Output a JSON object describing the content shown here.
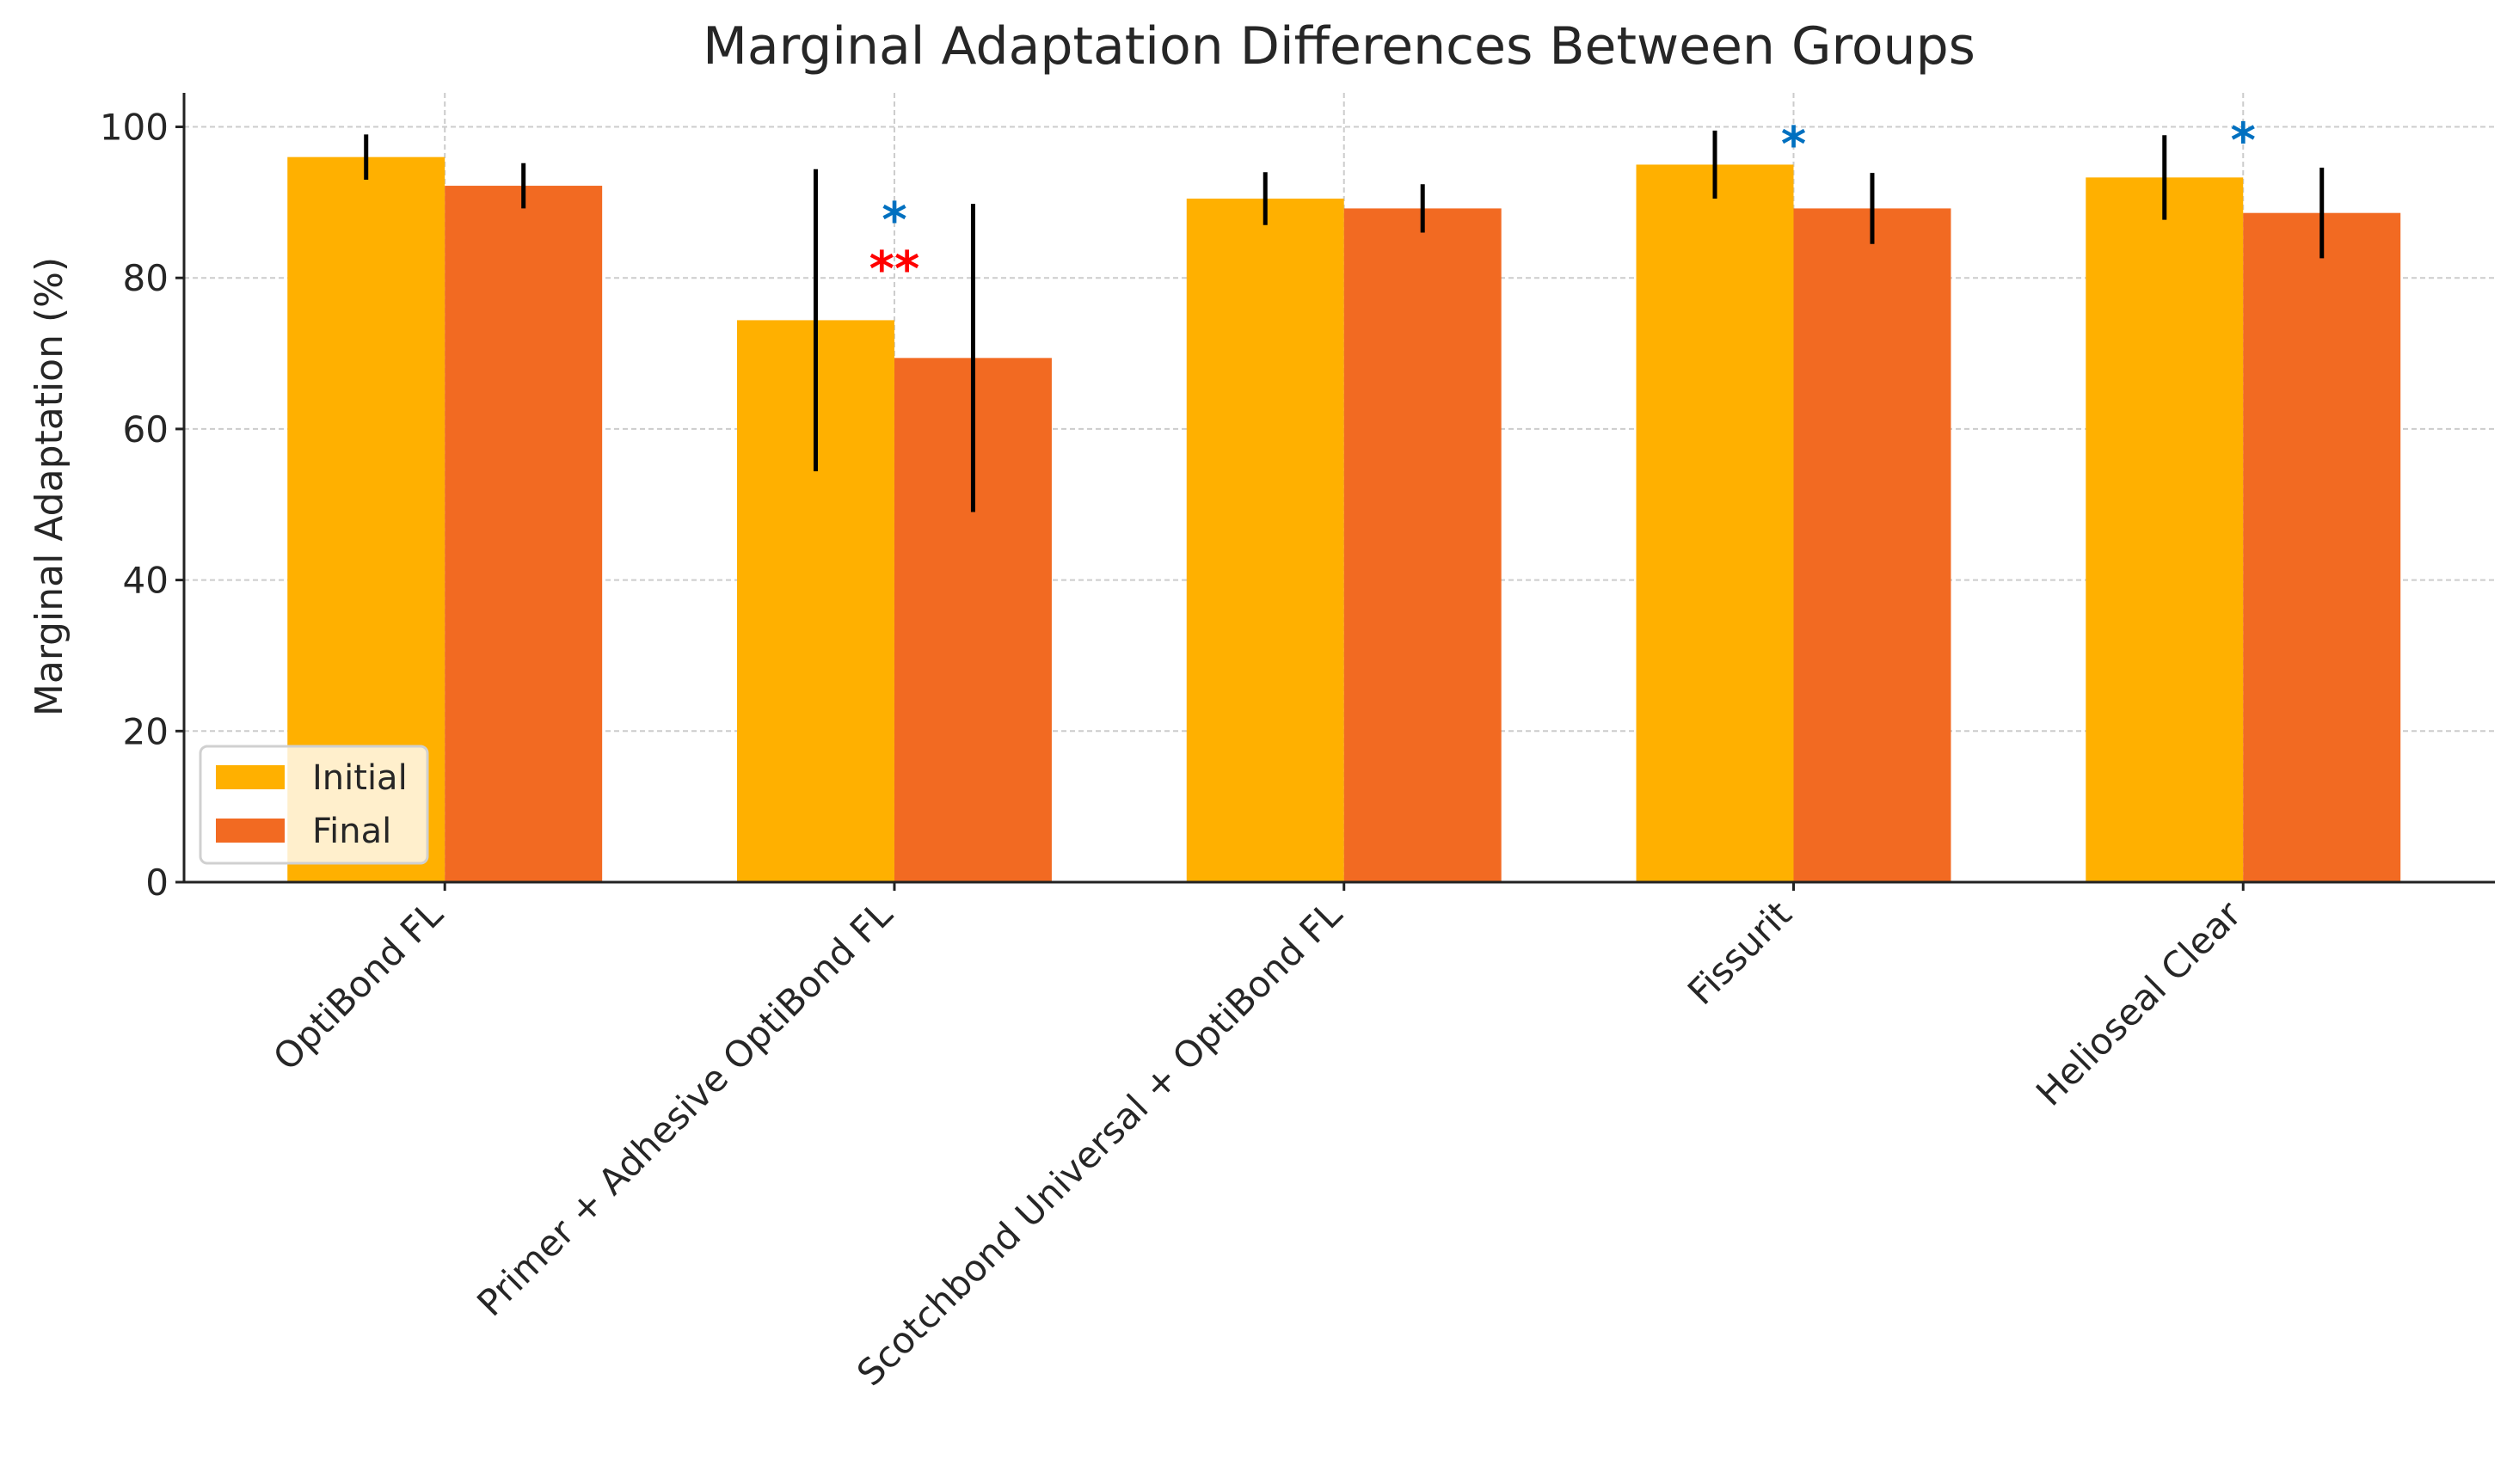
{
  "chart_data": {
    "type": "bar",
    "title": "Marginal Adaptation Differences Between Groups",
    "xlabel": "",
    "ylabel": "Marginal Adaptation (%)",
    "ylim": [
      0,
      104.5
    ],
    "yticks": [
      0,
      20,
      40,
      60,
      80,
      100
    ],
    "grid": true,
    "legend_placement": "lower-left",
    "categories": [
      "OptiBond FL",
      "Primer + Adhesive OptiBond FL",
      "Scotchbond Universal + OptiBond FL",
      "Fissurit",
      "Helioseal Clear"
    ],
    "series": [
      {
        "name": "Initial",
        "color": "#FFB000",
        "values": [
          96,
          74.4,
          90.5,
          95,
          93.3
        ],
        "errors": [
          3,
          20,
          3.5,
          4.5,
          5.6
        ]
      },
      {
        "name": "Final",
        "color": "#F26A22",
        "values": [
          92.2,
          69.4,
          89.2,
          89.2,
          88.6
        ],
        "errors": [
          3,
          20.4,
          3.2,
          4.7,
          6
        ]
      }
    ],
    "annotations": [
      {
        "category": "Primer + Adhesive OptiBond FL",
        "text": "*",
        "y": 88,
        "color": "#0070C0"
      },
      {
        "category": "Primer + Adhesive OptiBond FL",
        "text": "**",
        "y": 81.5,
        "color": "#FF0000"
      },
      {
        "category": "Fissurit",
        "text": "*",
        "y": 98,
        "color": "#0070C0"
      },
      {
        "category": "Helioseal Clear",
        "text": "*",
        "y": 98.5,
        "color": "#0070C0"
      }
    ]
  }
}
